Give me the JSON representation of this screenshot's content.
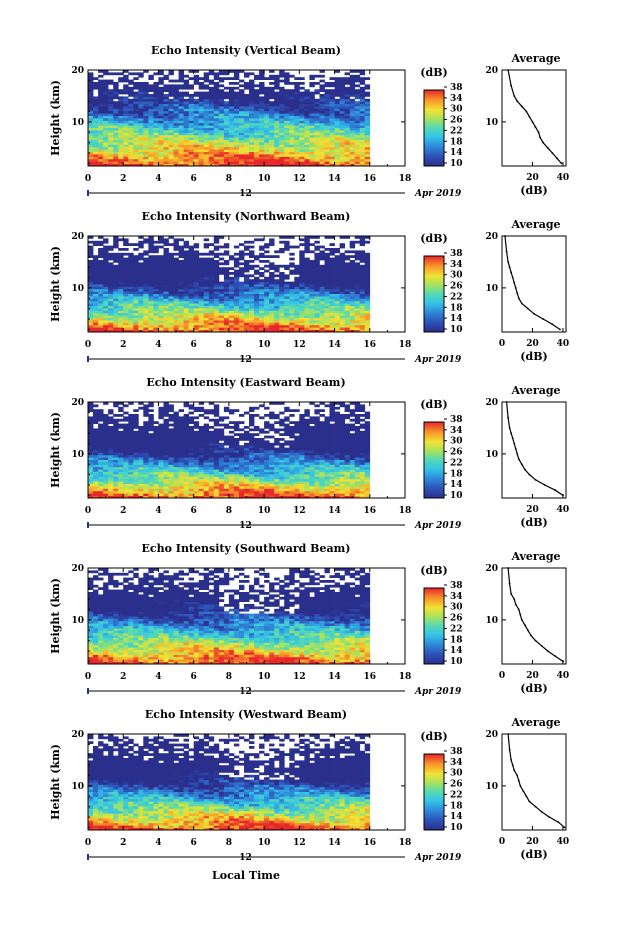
{
  "figure": {
    "xlabel": "Local Time",
    "date_label": "Apr 2019",
    "date_tick": "12",
    "colorbar_unit": "(dB)",
    "colorbar_ticks": [
      "10",
      "14",
      "18",
      "22",
      "26",
      "30",
      "34",
      "38"
    ],
    "avg_title": "Average",
    "avg_xlabel": "(dB)",
    "ylabel": "Height (km)"
  },
  "chart_data": [
    {
      "type": "heatmap",
      "title": "Echo Intensity (Vertical Beam)",
      "xlabel": "",
      "ylabel": "Height (km)",
      "x_ticks": [
        "0",
        "2",
        "4",
        "6",
        "8",
        "10",
        "12",
        "14",
        "16",
        "18"
      ],
      "y_ticks": [
        "10",
        "20"
      ],
      "xlim": [
        0,
        18
      ],
      "ylim": [
        1.5,
        20
      ],
      "clim": [
        10,
        38
      ],
      "data_end_hour": 16,
      "colorbar_label": "(dB)",
      "average_profile": {
        "title": "Average",
        "xlabel": "(dB)",
        "x_ticks": [
          "20",
          "40"
        ],
        "xlim": [
          0,
          42
        ],
        "x": [
          39,
          36,
          33,
          30,
          27,
          25,
          24,
          22,
          20,
          18,
          16,
          13,
          10,
          8,
          6,
          4
        ],
        "y": [
          2,
          3,
          4,
          5,
          6,
          7,
          8,
          9,
          10,
          11,
          12,
          13,
          14,
          15,
          17,
          20
        ]
      }
    },
    {
      "type": "heatmap",
      "title": "Echo Intensity (Northward Beam)",
      "xlabel": "",
      "ylabel": "Height (km)",
      "x_ticks": [
        "0",
        "2",
        "4",
        "6",
        "8",
        "10",
        "12",
        "14",
        "16",
        "18"
      ],
      "y_ticks": [
        "10",
        "20"
      ],
      "xlim": [
        0,
        18
      ],
      "ylim": [
        1.5,
        20
      ],
      "clim": [
        10,
        38
      ],
      "data_end_hour": 16,
      "colorbar_label": "(dB)",
      "average_profile": {
        "title": "Average",
        "xlabel": "(dB)",
        "x_ticks": [
          "0",
          "20",
          "40"
        ],
        "xlim": [
          0,
          42
        ],
        "x": [
          38,
          33,
          27,
          21,
          17,
          13,
          11,
          10,
          9,
          8,
          7,
          6,
          5,
          4,
          3,
          2
        ],
        "y": [
          2,
          3,
          4,
          5,
          6,
          7,
          8,
          9,
          10,
          11,
          12,
          13,
          14,
          15,
          17,
          20
        ]
      }
    },
    {
      "type": "heatmap",
      "title": "Echo Intensity (Eastward Beam)",
      "xlabel": "",
      "ylabel": "Height (km)",
      "x_ticks": [
        "0",
        "2",
        "4",
        "6",
        "8",
        "10",
        "12",
        "14",
        "16",
        "18"
      ],
      "y_ticks": [
        "10",
        "20"
      ],
      "xlim": [
        0,
        18
      ],
      "ylim": [
        1.5,
        20
      ],
      "clim": [
        10,
        38
      ],
      "data_end_hour": 16,
      "colorbar_label": "(dB)",
      "average_profile": {
        "title": "Average",
        "xlabel": "(dB)",
        "x_ticks": [
          "20",
          "40"
        ],
        "xlim": [
          0,
          42
        ],
        "x": [
          40,
          35,
          28,
          22,
          18,
          15,
          13,
          11,
          10,
          9,
          8,
          7,
          6,
          5,
          4,
          3
        ],
        "y": [
          2,
          3,
          4,
          5,
          6,
          7,
          8,
          9,
          10,
          11,
          12,
          13,
          14,
          15,
          17,
          20
        ]
      }
    },
    {
      "type": "heatmap",
      "title": "Echo Intensity (Southward Beam)",
      "xlabel": "",
      "ylabel": "Height (km)",
      "x_ticks": [
        "0",
        "2",
        "4",
        "6",
        "8",
        "10",
        "12",
        "14",
        "16",
        "18"
      ],
      "y_ticks": [
        "10",
        "20"
      ],
      "xlim": [
        0,
        18
      ],
      "ylim": [
        1.5,
        20
      ],
      "clim": [
        10,
        38
      ],
      "data_end_hour": 16,
      "colorbar_label": "(dB)",
      "average_profile": {
        "title": "Average",
        "xlabel": "(dB)",
        "x_ticks": [
          "0",
          "20",
          "40"
        ],
        "xlim": [
          0,
          42
        ],
        "x": [
          40,
          35,
          30,
          26,
          22,
          19,
          17,
          15,
          13,
          12,
          11,
          9,
          8,
          6,
          5,
          4
        ],
        "y": [
          2,
          3,
          4,
          5,
          6,
          7,
          8,
          9,
          10,
          11,
          12,
          13,
          14,
          15,
          17,
          20
        ]
      }
    },
    {
      "type": "heatmap",
      "title": "Echo Intensity (Westward Beam)",
      "xlabel": "Local Time",
      "ylabel": "Height (km)",
      "x_ticks": [
        "0",
        "2",
        "4",
        "6",
        "8",
        "10",
        "12",
        "14",
        "16",
        "18"
      ],
      "y_ticks": [
        "10",
        "20"
      ],
      "xlim": [
        0,
        18
      ],
      "ylim": [
        1.5,
        20
      ],
      "clim": [
        10,
        38
      ],
      "data_end_hour": 16,
      "colorbar_label": "(dB)",
      "average_profile": {
        "title": "Average",
        "xlabel": "(dB)",
        "x_ticks": [
          "0",
          "20",
          "40"
        ],
        "xlim": [
          0,
          42
        ],
        "x": [
          41,
          37,
          31,
          26,
          22,
          18,
          16,
          14,
          12,
          11,
          10,
          8,
          7,
          6,
          5,
          4
        ],
        "y": [
          2,
          3,
          4,
          5,
          6,
          7,
          8,
          9,
          10,
          11,
          12,
          13,
          14,
          15,
          17,
          20
        ]
      }
    }
  ]
}
